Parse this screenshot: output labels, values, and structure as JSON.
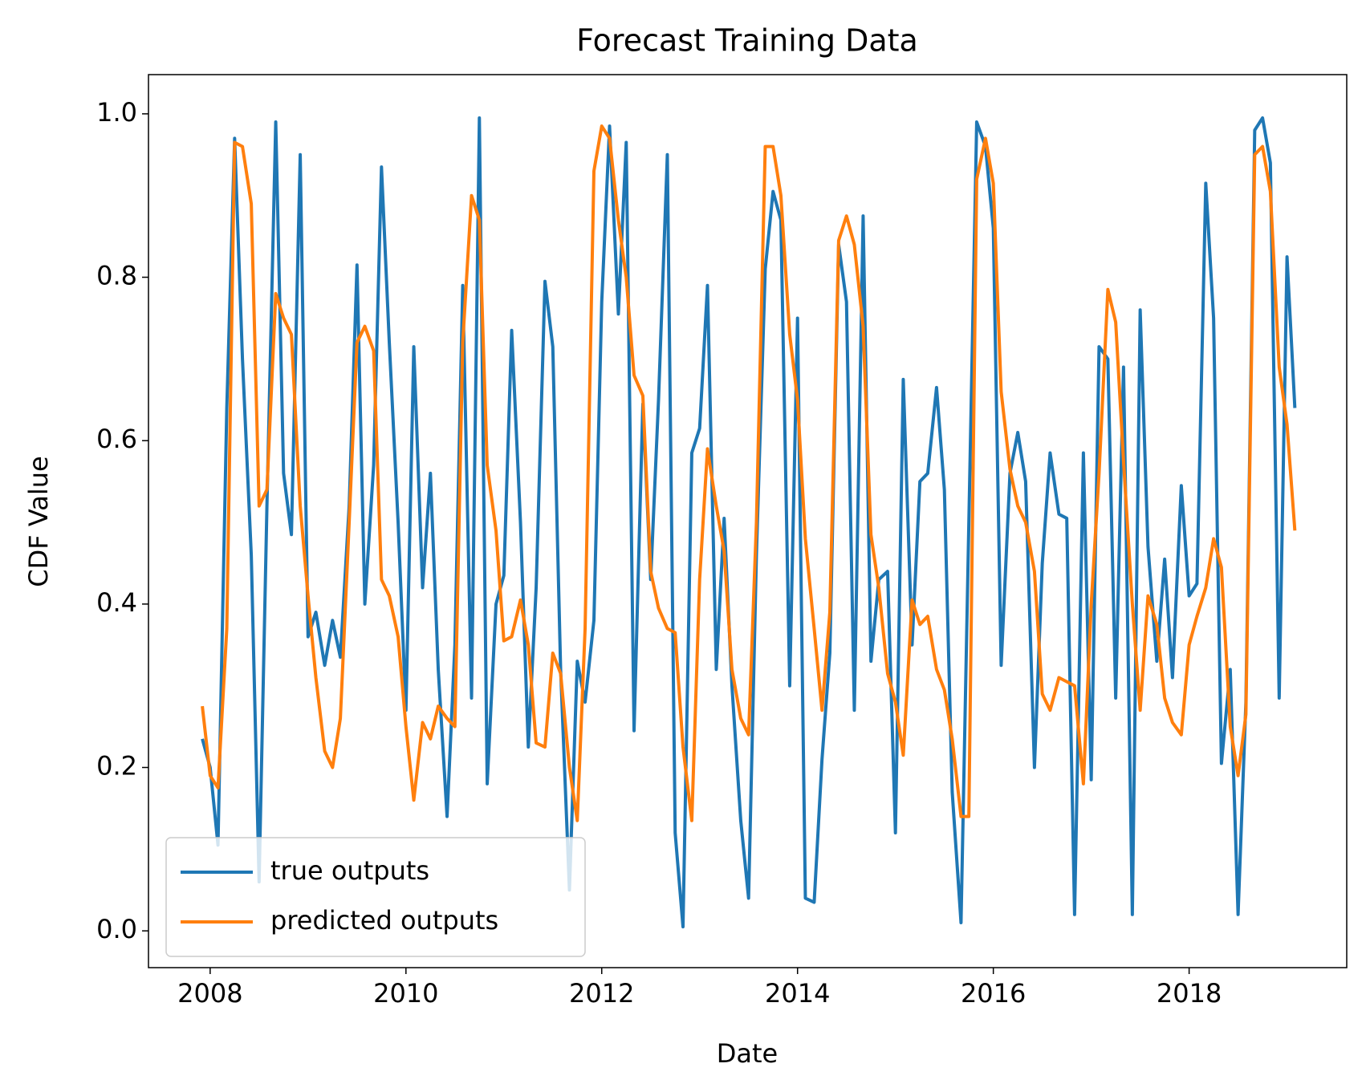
{
  "chart_data": {
    "type": "line",
    "title": "Forecast Training Data",
    "xlabel": "Date",
    "ylabel": "CDF Value",
    "x": [
      2007.92,
      2008.0,
      2008.08,
      2008.17,
      2008.25,
      2008.33,
      2008.42,
      2008.5,
      2008.58,
      2008.67,
      2008.75,
      2008.83,
      2008.92,
      2009.0,
      2009.08,
      2009.17,
      2009.25,
      2009.33,
      2009.42,
      2009.5,
      2009.58,
      2009.67,
      2009.75,
      2009.83,
      2009.92,
      2010.0,
      2010.08,
      2010.17,
      2010.25,
      2010.33,
      2010.42,
      2010.5,
      2010.58,
      2010.67,
      2010.75,
      2010.83,
      2010.92,
      2011.0,
      2011.08,
      2011.17,
      2011.25,
      2011.33,
      2011.42,
      2011.5,
      2011.58,
      2011.67,
      2011.75,
      2011.83,
      2011.92,
      2012.0,
      2012.08,
      2012.17,
      2012.25,
      2012.33,
      2012.42,
      2012.5,
      2012.58,
      2012.67,
      2012.75,
      2012.83,
      2012.92,
      2013.0,
      2013.08,
      2013.17,
      2013.25,
      2013.33,
      2013.42,
      2013.5,
      2013.58,
      2013.67,
      2013.75,
      2013.83,
      2013.92,
      2014.0,
      2014.08,
      2014.17,
      2014.25,
      2014.33,
      2014.42,
      2014.5,
      2014.58,
      2014.67,
      2014.75,
      2014.83,
      2014.92,
      2015.0,
      2015.08,
      2015.17,
      2015.25,
      2015.33,
      2015.42,
      2015.5,
      2015.58,
      2015.67,
      2015.75,
      2015.83,
      2015.92,
      2016.0,
      2016.08,
      2016.17,
      2016.25,
      2016.33,
      2016.42,
      2016.5,
      2016.58,
      2016.67,
      2016.75,
      2016.83,
      2016.92,
      2017.0,
      2017.08,
      2017.17,
      2017.25,
      2017.33,
      2017.42,
      2017.5,
      2017.58,
      2017.67,
      2017.75,
      2017.83,
      2017.92,
      2018.0,
      2018.08,
      2018.17,
      2018.25,
      2018.33,
      2018.42,
      2018.5,
      2018.58,
      2018.67,
      2018.75,
      2018.83,
      2018.92,
      2019.0,
      2019.08
    ],
    "series": [
      {
        "name": "true outputs",
        "color": "#1f77b4",
        "values": [
          0.235,
          0.2,
          0.105,
          0.64,
          0.97,
          0.7,
          0.46,
          0.06,
          0.52,
          0.99,
          0.56,
          0.485,
          0.95,
          0.36,
          0.39,
          0.325,
          0.38,
          0.335,
          0.52,
          0.815,
          0.4,
          0.57,
          0.935,
          0.72,
          0.5,
          0.27,
          0.715,
          0.42,
          0.56,
          0.32,
          0.14,
          0.35,
          0.79,
          0.285,
          0.995,
          0.18,
          0.4,
          0.435,
          0.735,
          0.5,
          0.225,
          0.42,
          0.795,
          0.715,
          0.32,
          0.05,
          0.33,
          0.28,
          0.38,
          0.77,
          0.985,
          0.755,
          0.965,
          0.245,
          0.645,
          0.43,
          0.65,
          0.95,
          0.12,
          0.005,
          0.585,
          0.615,
          0.79,
          0.32,
          0.505,
          0.3,
          0.135,
          0.04,
          0.46,
          0.81,
          0.905,
          0.87,
          0.3,
          0.75,
          0.04,
          0.035,
          0.21,
          0.34,
          0.84,
          0.77,
          0.27,
          0.875,
          0.33,
          0.43,
          0.44,
          0.12,
          0.675,
          0.35,
          0.55,
          0.56,
          0.665,
          0.54,
          0.17,
          0.01,
          0.5,
          0.99,
          0.96,
          0.86,
          0.325,
          0.56,
          0.61,
          0.55,
          0.2,
          0.45,
          0.585,
          0.51,
          0.505,
          0.02,
          0.585,
          0.185,
          0.715,
          0.7,
          0.285,
          0.69,
          0.02,
          0.76,
          0.47,
          0.33,
          0.455,
          0.31,
          0.545,
          0.41,
          0.425,
          0.915,
          0.75,
          0.205,
          0.32,
          0.02,
          0.28,
          0.98,
          0.995,
          0.94,
          0.285,
          0.825,
          0.64
        ]
      },
      {
        "name": "predicted outputs",
        "color": "#ff7f0e",
        "values": [
          0.275,
          0.19,
          0.175,
          0.37,
          0.965,
          0.96,
          0.89,
          0.52,
          0.54,
          0.78,
          0.75,
          0.73,
          0.52,
          0.41,
          0.31,
          0.22,
          0.2,
          0.26,
          0.5,
          0.72,
          0.74,
          0.71,
          0.43,
          0.41,
          0.36,
          0.25,
          0.16,
          0.255,
          0.235,
          0.275,
          0.26,
          0.25,
          0.72,
          0.9,
          0.87,
          0.57,
          0.49,
          0.355,
          0.36,
          0.405,
          0.35,
          0.23,
          0.225,
          0.34,
          0.315,
          0.2,
          0.135,
          0.37,
          0.93,
          0.985,
          0.97,
          0.87,
          0.8,
          0.68,
          0.655,
          0.44,
          0.395,
          0.37,
          0.365,
          0.225,
          0.135,
          0.43,
          0.59,
          0.52,
          0.465,
          0.32,
          0.26,
          0.24,
          0.5,
          0.96,
          0.96,
          0.9,
          0.73,
          0.65,
          0.48,
          0.37,
          0.27,
          0.39,
          0.845,
          0.875,
          0.84,
          0.74,
          0.485,
          0.42,
          0.315,
          0.28,
          0.215,
          0.405,
          0.375,
          0.385,
          0.32,
          0.295,
          0.235,
          0.14,
          0.14,
          0.92,
          0.97,
          0.915,
          0.66,
          0.565,
          0.52,
          0.5,
          0.44,
          0.29,
          0.27,
          0.31,
          0.305,
          0.3,
          0.18,
          0.4,
          0.56,
          0.785,
          0.745,
          0.575,
          0.4,
          0.27,
          0.41,
          0.375,
          0.285,
          0.255,
          0.24,
          0.35,
          0.385,
          0.42,
          0.48,
          0.445,
          0.25,
          0.19,
          0.265,
          0.95,
          0.96,
          0.905,
          0.69,
          0.62,
          0.49
        ]
      }
    ],
    "xlim": [
      2007.37,
      2019.61
    ],
    "xticks": [
      2008,
      2010,
      2012,
      2014,
      2016,
      2018
    ],
    "ylim": [
      -0.045,
      1.048
    ],
    "yticks": [
      {
        "value": 0,
        "label": "0.0"
      },
      0.2,
      0.4,
      0.6,
      0.8,
      {
        "value": 1,
        "label": "1.0"
      }
    ],
    "legend": "lower left"
  }
}
